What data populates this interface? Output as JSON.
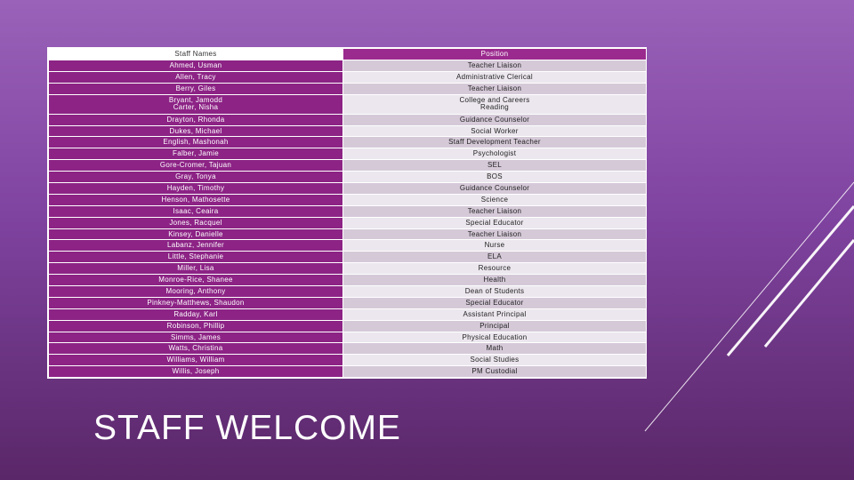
{
  "slide": {
    "title": "STAFF WELCOME"
  },
  "colors": {
    "background_top": "#9a62b9",
    "background_bottom": "#5a2768",
    "name_cell": "#8c2385",
    "header_accent": "#9b2a8e",
    "row_odd": "#d5c9d8",
    "row_even": "#ece7ee"
  },
  "table": {
    "headers": [
      "Staff Names",
      "Position"
    ],
    "rows": [
      {
        "name": "Ahmed, Usman",
        "position": "Teacher Liaison"
      },
      {
        "name": "Allen, Tracy",
        "position": "Administrative Clerical"
      },
      {
        "name": "Berry, Giles",
        "position": "Teacher Liaison"
      },
      {
        "name": "Bryant, Jamodd\nCarter, Nisha",
        "position": "College and Careers\nReading"
      },
      {
        "name": "Drayton, Rhonda",
        "position": "Guidance Counselor"
      },
      {
        "name": "Dukes, Michael",
        "position": "Social Worker"
      },
      {
        "name": "English, Mashonah",
        "position": "Staff Development Teacher"
      },
      {
        "name": "Falber, Jamie",
        "position": "Psychologist"
      },
      {
        "name": "Gore-Cromer, Tajuan",
        "position": "SEL"
      },
      {
        "name": "Gray, Tonya",
        "position": "BOS"
      },
      {
        "name": "Hayden, Timothy",
        "position": "Guidance Counselor"
      },
      {
        "name": "Henson, Mathosette",
        "position": "Science"
      },
      {
        "name": "Isaac, Ceaira",
        "position": "Teacher Liaison"
      },
      {
        "name": "Jones, Racquel",
        "position": "Special Educator"
      },
      {
        "name": "Kinsey, Danielle",
        "position": "Teacher Liaison"
      },
      {
        "name": "Labanz, Jennifer",
        "position": "Nurse"
      },
      {
        "name": "Little, Stephanie",
        "position": "ELA"
      },
      {
        "name": "Miller, Lisa",
        "position": "Resource"
      },
      {
        "name": "Monroe-Rice, Shanee",
        "position": "Health"
      },
      {
        "name": "Mooring, Anthony",
        "position": "Dean of Students"
      },
      {
        "name": "Pinkney-Matthews, Shaudon",
        "position": "Special Educator"
      },
      {
        "name": "Radday, Karl",
        "position": "Assistant Principal"
      },
      {
        "name": "Robinson, Phillip",
        "position": "Principal"
      },
      {
        "name": "Simms, James",
        "position": "Physical Education"
      },
      {
        "name": "Watts, Christina",
        "position": "Math"
      },
      {
        "name": "Williams, William",
        "position": "Social Studies"
      },
      {
        "name": "Willis, Joseph",
        "position": "PM Custodial"
      }
    ]
  }
}
